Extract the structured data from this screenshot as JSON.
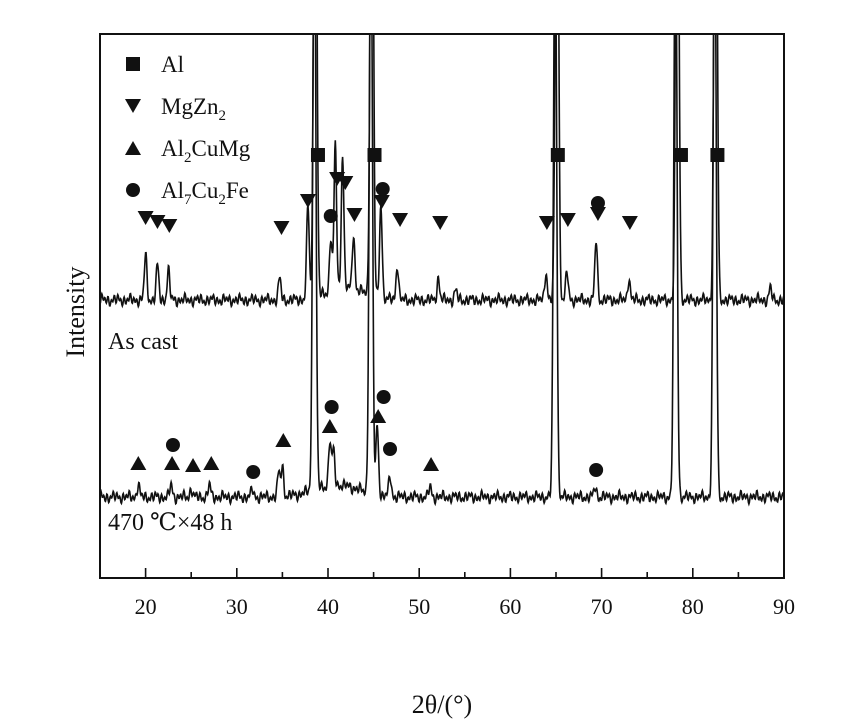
{
  "chart_data": {
    "type": "line",
    "xlabel": "2θ/(°)",
    "ylabel": "Intensity",
    "xlim": [
      15,
      90
    ],
    "xticks": [
      20,
      30,
      40,
      50,
      60,
      70,
      80,
      90
    ],
    "grid": false,
    "legend_position": "top-left",
    "legend": [
      {
        "marker": "square",
        "text": "Al"
      },
      {
        "marker": "triangle-down",
        "text": "MgZn",
        "sub": "2",
        "rest": ""
      },
      {
        "marker": "triangle-up",
        "text": "Al",
        "sub": "2",
        "rest": "CuMg"
      },
      {
        "marker": "circle",
        "text": "Al",
        "sub": "7",
        "rest": "Cu",
        "sub2": "2",
        "rest2": "Fe"
      }
    ],
    "series": [
      {
        "name": "As cast",
        "peaks": [
          {
            "x": 20.0,
            "h": 0.45
          },
          {
            "x": 21.3,
            "h": 0.35
          },
          {
            "x": 22.5,
            "h": 0.3
          },
          {
            "x": 34.7,
            "h": 0.22
          },
          {
            "x": 37.8,
            "h": 0.95
          },
          {
            "x": 38.6,
            "h": 6.0
          },
          {
            "x": 40.3,
            "h": 0.55
          },
          {
            "x": 40.8,
            "h": 1.45
          },
          {
            "x": 41.6,
            "h": 1.35
          },
          {
            "x": 42.8,
            "h": 0.55
          },
          {
            "x": 44.8,
            "h": 6.0
          },
          {
            "x": 45.8,
            "h": 0.95
          },
          {
            "x": 47.6,
            "h": 0.35
          },
          {
            "x": 52.1,
            "h": 0.22
          },
          {
            "x": 54.0,
            "h": 0.1
          },
          {
            "x": 63.9,
            "h": 0.28
          },
          {
            "x": 65.1,
            "h": 6.0
          },
          {
            "x": 66.2,
            "h": 0.28
          },
          {
            "x": 69.4,
            "h": 0.6
          },
          {
            "x": 73.0,
            "h": 0.22
          },
          {
            "x": 78.3,
            "h": 6.0
          },
          {
            "x": 82.5,
            "h": 6.0
          },
          {
            "x": 88.5,
            "h": 0.12
          }
        ],
        "markers": [
          {
            "x": 38.9,
            "type": "square",
            "y": 1.45
          },
          {
            "x": 45.1,
            "type": "square",
            "y": 1.45
          },
          {
            "x": 65.2,
            "type": "square",
            "y": 1.45
          },
          {
            "x": 78.7,
            "type": "square",
            "y": 1.45
          },
          {
            "x": 82.7,
            "type": "square",
            "y": 1.45
          },
          {
            "x": 20.0,
            "type": "triangle-down",
            "y": 0.82
          },
          {
            "x": 21.3,
            "type": "triangle-down",
            "y": 0.78
          },
          {
            "x": 22.6,
            "type": "triangle-down",
            "y": 0.74
          },
          {
            "x": 34.9,
            "type": "triangle-down",
            "y": 0.72
          },
          {
            "x": 37.8,
            "type": "triangle-down",
            "y": 0.99
          },
          {
            "x": 41.0,
            "type": "triangle-down",
            "y": 1.21
          },
          {
            "x": 41.9,
            "type": "triangle-down",
            "y": 1.17
          },
          {
            "x": 42.9,
            "type": "triangle-down",
            "y": 0.85
          },
          {
            "x": 45.9,
            "type": "triangle-down",
            "y": 0.98
          },
          {
            "x": 47.9,
            "type": "triangle-down",
            "y": 0.8
          },
          {
            "x": 52.3,
            "type": "triangle-down",
            "y": 0.77
          },
          {
            "x": 64.0,
            "type": "triangle-down",
            "y": 0.77
          },
          {
            "x": 66.3,
            "type": "triangle-down",
            "y": 0.8
          },
          {
            "x": 69.6,
            "type": "triangle-down",
            "y": 0.86
          },
          {
            "x": 73.1,
            "type": "triangle-down",
            "y": 0.77
          },
          {
            "x": 40.3,
            "type": "circle",
            "y": 0.84
          },
          {
            "x": 46.0,
            "type": "circle",
            "y": 1.11
          },
          {
            "x": 69.6,
            "type": "circle",
            "y": 0.97
          }
        ]
      },
      {
        "name": "470 ℃×48 h",
        "peaks": [
          {
            "x": 19.2,
            "h": 0.12
          },
          {
            "x": 22.8,
            "h": 0.12
          },
          {
            "x": 25.0,
            "h": 0.08
          },
          {
            "x": 27.0,
            "h": 0.12
          },
          {
            "x": 31.7,
            "h": 0.07
          },
          {
            "x": 34.6,
            "h": 0.24
          },
          {
            "x": 35.0,
            "h": 0.3
          },
          {
            "x": 38.5,
            "h": 6.0
          },
          {
            "x": 40.2,
            "h": 0.45
          },
          {
            "x": 40.6,
            "h": 0.35
          },
          {
            "x": 44.7,
            "h": 6.0
          },
          {
            "x": 45.4,
            "h": 0.7
          },
          {
            "x": 46.8,
            "h": 0.2
          },
          {
            "x": 51.2,
            "h": 0.1
          },
          {
            "x": 64.9,
            "h": 6.0
          },
          {
            "x": 69.3,
            "h": 0.1
          },
          {
            "x": 78.1,
            "h": 6.0
          },
          {
            "x": 82.4,
            "h": 6.0
          }
        ],
        "markers": [
          {
            "x": 19.2,
            "type": "triangle-up",
            "y": 0.34
          },
          {
            "x": 22.9,
            "type": "triangle-up",
            "y": 0.34
          },
          {
            "x": 25.2,
            "type": "triangle-up",
            "y": 0.32
          },
          {
            "x": 27.2,
            "type": "triangle-up",
            "y": 0.34
          },
          {
            "x": 35.1,
            "type": "triangle-up",
            "y": 0.57
          },
          {
            "x": 40.2,
            "type": "triangle-up",
            "y": 0.71
          },
          {
            "x": 45.5,
            "type": "triangle-up",
            "y": 0.81
          },
          {
            "x": 51.3,
            "type": "triangle-up",
            "y": 0.33
          },
          {
            "x": 23.0,
            "type": "circle",
            "y": 0.52
          },
          {
            "x": 31.8,
            "type": "circle",
            "y": 0.25
          },
          {
            "x": 40.4,
            "type": "circle",
            "y": 0.9
          },
          {
            "x": 46.1,
            "type": "circle",
            "y": 1.0
          },
          {
            "x": 46.8,
            "type": "circle",
            "y": 0.48
          },
          {
            "x": 69.4,
            "type": "circle",
            "y": 0.27
          }
        ]
      }
    ]
  }
}
